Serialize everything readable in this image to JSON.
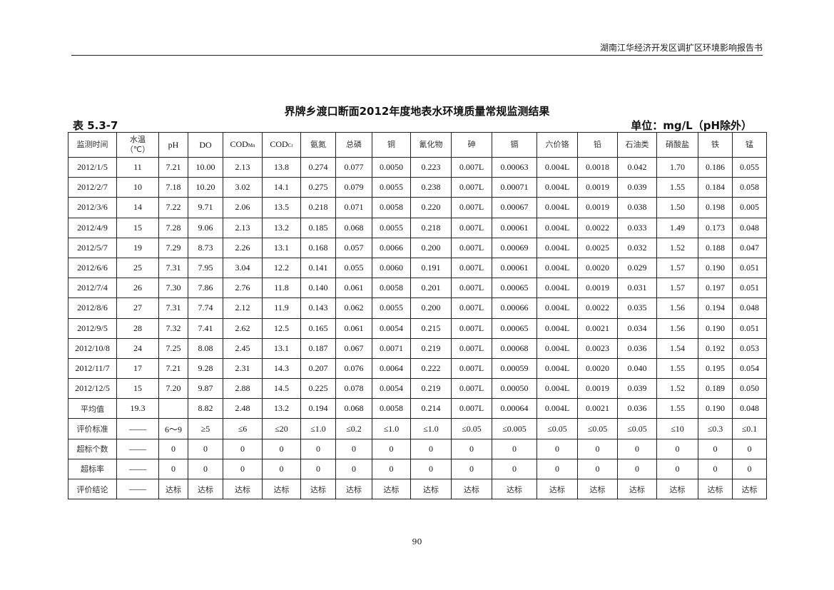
{
  "running_header": "湖南江华经济开发区调扩区环境影响报告书",
  "title": "界牌乡渡口断面2012年度地表水环境质量常规监测结果",
  "table_number": "表 5.3-7",
  "unit": "单位：mg/L（pH除外）",
  "columns": [
    {
      "label": "监测时间"
    },
    {
      "label": "水温",
      "label2": "（℃）"
    },
    {
      "label": "pH"
    },
    {
      "label": "DO"
    },
    {
      "label": "COD",
      "sub": "Mn"
    },
    {
      "label": "COD",
      "sub": "Cr"
    },
    {
      "label": "氨氮"
    },
    {
      "label": "总磷"
    },
    {
      "label": "铜"
    },
    {
      "label": "氰化物"
    },
    {
      "label": "砷"
    },
    {
      "label": "镉"
    },
    {
      "label": "六价铬"
    },
    {
      "label": "铅"
    },
    {
      "label": "石油类"
    },
    {
      "label": "硝酸盐"
    },
    {
      "label": "铁"
    },
    {
      "label": "锰"
    }
  ],
  "rows": [
    [
      "2012/1/5",
      "11",
      "7.21",
      "10.00",
      "2.13",
      "13.8",
      "0.274",
      "0.077",
      "0.0050",
      "0.223",
      "0.007L",
      "0.00063",
      "0.004L",
      "0.0018",
      "0.042",
      "1.70",
      "0.186",
      "0.055"
    ],
    [
      "2012/2/7",
      "10",
      "7.18",
      "10.20",
      "3.02",
      "14.1",
      "0.275",
      "0.079",
      "0.0055",
      "0.238",
      "0.007L",
      "0.00071",
      "0.004L",
      "0.0019",
      "0.039",
      "1.55",
      "0.184",
      "0.058"
    ],
    [
      "2012/3/6",
      "14",
      "7.22",
      "9.71",
      "2.06",
      "13.5",
      "0.218",
      "0.071",
      "0.0058",
      "0.220",
      "0.007L",
      "0.00067",
      "0.004L",
      "0.0019",
      "0.038",
      "1.50",
      "0.198",
      "0.005"
    ],
    [
      "2012/4/9",
      "15",
      "7.28",
      "9.06",
      "2.13",
      "13.2",
      "0.185",
      "0.068",
      "0.0055",
      "0.218",
      "0.007L",
      "0.00061",
      "0.004L",
      "0.0022",
      "0.033",
      "1.49",
      "0.173",
      "0.048"
    ],
    [
      "2012/5/7",
      "19",
      "7.29",
      "8.73",
      "2.26",
      "13.1",
      "0.168",
      "0.057",
      "0.0066",
      "0.200",
      "0.007L",
      "0.00069",
      "0.004L",
      "0.0025",
      "0.032",
      "1.52",
      "0.188",
      "0.047"
    ],
    [
      "2012/6/6",
      "25",
      "7.31",
      "7.95",
      "3.04",
      "12.2",
      "0.141",
      "0.055",
      "0.0060",
      "0.191",
      "0.007L",
      "0.00061",
      "0.004L",
      "0.0020",
      "0.029",
      "1.57",
      "0.190",
      "0.051"
    ],
    [
      "2012/7/4",
      "26",
      "7.30",
      "7.86",
      "2.76",
      "11.8",
      "0.140",
      "0.061",
      "0.0058",
      "0.201",
      "0.007L",
      "0.00065",
      "0.004L",
      "0.0019",
      "0.031",
      "1.57",
      "0.197",
      "0.051"
    ],
    [
      "2012/8/6",
      "27",
      "7.31",
      "7.74",
      "2.12",
      "11.9",
      "0.143",
      "0.062",
      "0.0055",
      "0.200",
      "0.007L",
      "0.00066",
      "0.004L",
      "0.0022",
      "0.035",
      "1.56",
      "0.194",
      "0.048"
    ],
    [
      "2012/9/5",
      "28",
      "7.32",
      "7.41",
      "2.62",
      "12.5",
      "0.165",
      "0.061",
      "0.0054",
      "0.215",
      "0.007L",
      "0.00065",
      "0.004L",
      "0.0021",
      "0.034",
      "1.56",
      "0.190",
      "0.051"
    ],
    [
      "2012/10/8",
      "24",
      "7.25",
      "8.08",
      "2.45",
      "13.1",
      "0.187",
      "0.067",
      "0.0071",
      "0.219",
      "0.007L",
      "0.00068",
      "0.004L",
      "0.0023",
      "0.036",
      "1.54",
      "0.192",
      "0.053"
    ],
    [
      "2012/11/7",
      "17",
      "7.21",
      "9.28",
      "2.31",
      "14.3",
      "0.207",
      "0.076",
      "0.0064",
      "0.222",
      "0.007L",
      "0.00059",
      "0.004L",
      "0.0020",
      "0.040",
      "1.55",
      "0.195",
      "0.054"
    ],
    [
      "2012/12/5",
      "15",
      "7.20",
      "9.87",
      "2.88",
      "14.5",
      "0.225",
      "0.078",
      "0.0054",
      "0.219",
      "0.007L",
      "0.00050",
      "0.004L",
      "0.0019",
      "0.039",
      "1.52",
      "0.189",
      "0.050"
    ],
    [
      "平均值",
      "19.3",
      "",
      "8.82",
      "2.48",
      "13.2",
      "0.194",
      "0.068",
      "0.0058",
      "0.214",
      "0.007L",
      "0.00064",
      "0.004L",
      "0.0021",
      "0.036",
      "1.55",
      "0.190",
      "0.048"
    ],
    [
      "评价标准",
      "——",
      "6～9",
      "≥5",
      "≤6",
      "≤20",
      "≤1.0",
      "≤0.2",
      "≤1.0",
      "≤1.0",
      "≤0.05",
      "≤0.005",
      "≤0.05",
      "≤0.05",
      "≤0.05",
      "≤10",
      "≤0.3",
      "≤0.1"
    ],
    [
      "超标个数",
      "——",
      "0",
      "0",
      "0",
      "0",
      "0",
      "0",
      "0",
      "0",
      "0",
      "0",
      "0",
      "0",
      "0",
      "0",
      "0",
      "0"
    ],
    [
      "超标率",
      "——",
      "0",
      "0",
      "0",
      "0",
      "0",
      "0",
      "0",
      "0",
      "0",
      "0",
      "0",
      "0",
      "0",
      "0",
      "0",
      "0"
    ],
    [
      "评价结论",
      "——",
      "达标",
      "达标",
      "达标",
      "达标",
      "达标",
      "达标",
      "达标",
      "达标",
      "达标",
      "达标",
      "达标",
      "达标",
      "达标",
      "达标",
      "达标",
      "达标"
    ]
  ],
  "page_number": "90"
}
